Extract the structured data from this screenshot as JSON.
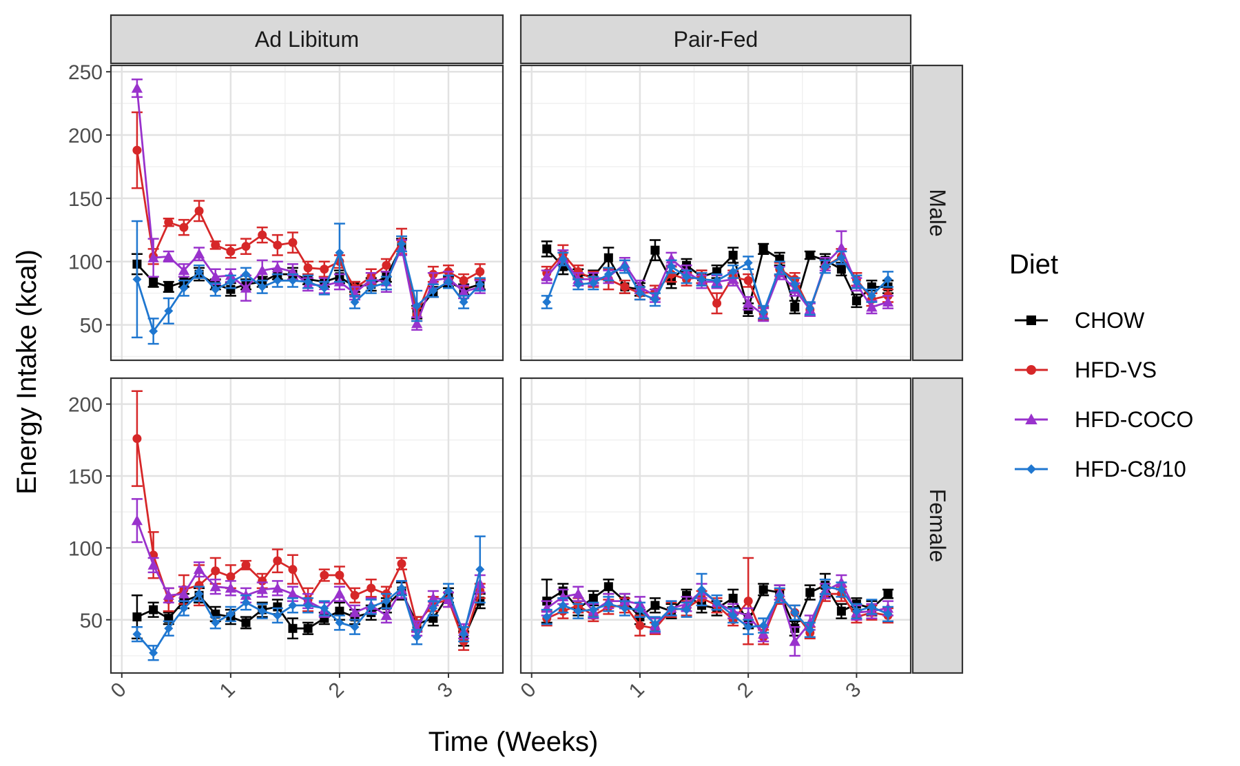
{
  "chart_data": {
    "type": "line",
    "xlabel": "Time (Weeks)",
    "ylabel": "Energy Intake (kcal)",
    "xlim": [
      -0.1,
      3.5
    ],
    "x_ticks": [
      "0",
      "1",
      "2",
      "3"
    ],
    "columns": [
      "Ad Libitum",
      "Pair-Fed"
    ],
    "rows": [
      "Male",
      "Female"
    ],
    "row_ylim": {
      "Male": [
        22,
        255
      ],
      "Female": [
        13,
        218
      ]
    },
    "row_yticks": {
      "Male": [
        50,
        100,
        150,
        200,
        250
      ],
      "Female": [
        50,
        100,
        150,
        200
      ]
    },
    "legend": {
      "title": "Diet",
      "position": "right",
      "items": [
        {
          "name": "CHOW",
          "color": "#000000",
          "shape": "square"
        },
        {
          "name": "HFD-VS",
          "color": "#d62728",
          "shape": "circle"
        },
        {
          "name": "HFD-COCO",
          "color": "#9932cc",
          "shape": "triangle"
        },
        {
          "name": "HFD-C8/10",
          "color": "#1f77d0",
          "shape": "diamond"
        }
      ]
    },
    "x": [
      0.14,
      0.29,
      0.43,
      0.57,
      0.71,
      0.86,
      1.0,
      1.14,
      1.29,
      1.43,
      1.57,
      1.71,
      1.86,
      2.0,
      2.14,
      2.29,
      2.43,
      2.57,
      2.71,
      2.86,
      3.0,
      3.14,
      3.29
    ],
    "panels": [
      {
        "column": "Ad Libitum",
        "row": "Male",
        "series": [
          {
            "name": "CHOW",
            "values": [
              98,
              84,
              80,
              84,
              90,
              82,
              78,
              82,
              84,
              90,
              90,
              86,
              84,
              88,
              80,
              82,
              88,
              112,
              60,
              76,
              84,
              78,
              82
            ],
            "errors": [
              8,
              4,
              4,
              4,
              5,
              4,
              5,
              4,
              4,
              4,
              5,
              4,
              4,
              5,
              4,
              5,
              4,
              6,
              5,
              4,
              4,
              4,
              4
            ]
          },
          {
            "name": "HFD-VS",
            "values": [
              188,
              104,
              131,
              127,
              140,
              113,
              108,
              112,
              121,
              113,
              115,
              95,
              94,
              100,
              79,
              88,
              97,
              116,
              58,
              90,
              92,
              85,
              92
            ],
            "errors": [
              30,
              6,
              3,
              6,
              8,
              3,
              5,
              6,
              6,
              8,
              8,
              5,
              6,
              5,
              5,
              6,
              5,
              10,
              5,
              6,
              5,
              5,
              6
            ]
          },
          {
            "name": "HFD-COCO",
            "values": [
              237,
              103,
              104,
              93,
              106,
              88,
              89,
              79,
              93,
              95,
              92,
              82,
              81,
              84,
              75,
              86,
              84,
              111,
              51,
              85,
              87,
              76,
              80
            ],
            "errors": [
              7,
              15,
              4,
              5,
              5,
              6,
              5,
              10,
              8,
              5,
              6,
              5,
              6,
              6,
              5,
              5,
              8,
              6,
              5,
              6,
              5,
              5,
              5
            ]
          },
          {
            "name": "HFD-C8/10",
            "values": [
              86,
              45,
              61,
              79,
              92,
              78,
              84,
              90,
              80,
              85,
              85,
              84,
              79,
              107,
              68,
              80,
              83,
              114,
              65,
              77,
              84,
              68,
              82
            ],
            "errors": [
              46,
              10,
              10,
              6,
              5,
              5,
              5,
              5,
              5,
              5,
              5,
              5,
              5,
              23,
              5,
              5,
              5,
              6,
              12,
              5,
              5,
              5,
              5
            ]
          }
        ]
      },
      {
        "column": "Pair-Fed",
        "row": "Male",
        "series": [
          {
            "name": "CHOW",
            "values": [
              110,
              96,
              90,
              88,
              103,
              80,
              78,
              109,
              85,
              97,
              88,
              92,
              105,
              62,
              110,
              102,
              64,
              105,
              101,
              94,
              69,
              80,
              80
            ],
            "errors": [
              6,
              6,
              4,
              5,
              8,
              5,
              5,
              8,
              6,
              5,
              5,
              5,
              6,
              5,
              4,
              5,
              5,
              3,
              5,
              5,
              5,
              5,
              5
            ]
          },
          {
            "name": "HFD-VS",
            "values": [
              91,
              106,
              92,
              86,
              86,
              80,
              75,
              76,
              90,
              86,
              88,
              67,
              88,
              85,
              59,
              94,
              86,
              62,
              96,
              104,
              86,
              70,
              73
            ],
            "errors": [
              5,
              7,
              5,
              6,
              8,
              5,
              5,
              5,
              6,
              5,
              5,
              8,
              5,
              5,
              5,
              5,
              5,
              5,
              5,
              6,
              5,
              5,
              5
            ]
          },
          {
            "name": "HFD-COCO",
            "values": [
              88,
              103,
              86,
              86,
              88,
              98,
              80,
              73,
              102,
              92,
              84,
              84,
              86,
              67,
              58,
              91,
              78,
              62,
              98,
              111,
              82,
              64,
              68
            ],
            "errors": [
              5,
              6,
              5,
              5,
              5,
              5,
              5,
              5,
              5,
              5,
              5,
              5,
              5,
              5,
              5,
              5,
              5,
              5,
              5,
              13,
              5,
              5,
              5
            ]
          },
          {
            "name": "HFD-C8/10",
            "values": [
              68,
              102,
              82,
              83,
              90,
              96,
              75,
              70,
              96,
              88,
              86,
              85,
              92,
              99,
              60,
              95,
              82,
              63,
              96,
              103,
              84,
              73,
              86
            ],
            "errors": [
              5,
              5,
              4,
              5,
              5,
              5,
              5,
              5,
              5,
              5,
              5,
              5,
              5,
              5,
              5,
              5,
              5,
              5,
              5,
              5,
              5,
              5,
              6
            ]
          }
        ]
      },
      {
        "column": "Ad Libitum",
        "row": "Female",
        "series": [
          {
            "name": "CHOW",
            "values": [
              52,
              57,
              51,
              63,
              67,
              54,
              52,
              48,
              57,
              59,
              44,
              44,
              51,
              56,
              52,
              55,
              60,
              70,
              47,
              51,
              67,
              37,
              63
            ],
            "errors": [
              15,
              5,
              4,
              5,
              5,
              5,
              5,
              4,
              5,
              5,
              7,
              4,
              4,
              6,
              5,
              5,
              5,
              6,
              5,
              5,
              5,
              5,
              5
            ]
          },
          {
            "name": "HFD-VS",
            "values": [
              176,
              95,
              64,
              71,
              74,
              84,
              80,
              88,
              77,
              91,
              85,
              64,
              81,
              81,
              67,
              72,
              68,
              89,
              47,
              61,
              64,
              35,
              70
            ],
            "errors": [
              33,
              16,
              8,
              10,
              14,
              9,
              8,
              3,
              5,
              8,
              10,
              8,
              4,
              6,
              5,
              6,
              5,
              4,
              5,
              5,
              5,
              6,
              5
            ]
          },
          {
            "name": "HFD-COCO",
            "values": [
              119,
              88,
              67,
              68,
              85,
              73,
              72,
              67,
              71,
              72,
              68,
              63,
              57,
              68,
              55,
              60,
              53,
              71,
              44,
              65,
              64,
              42,
              75
            ],
            "errors": [
              15,
              5,
              5,
              5,
              5,
              5,
              5,
              5,
              5,
              5,
              5,
              5,
              5,
              5,
              5,
              5,
              5,
              6,
              5,
              5,
              5,
              5,
              6
            ]
          },
          {
            "name": "HFD-C8/10",
            "values": [
              40,
              27,
              44,
              58,
              68,
              48,
              54,
              62,
              56,
              53,
              60,
              60,
              58,
              48,
              45,
              59,
              63,
              72,
              38,
              58,
              70,
              40,
              85
            ],
            "errors": [
              5,
              5,
              5,
              5,
              5,
              4,
              5,
              5,
              5,
              5,
              5,
              5,
              5,
              5,
              5,
              5,
              5,
              5,
              5,
              5,
              5,
              5,
              23
            ]
          }
        ]
      },
      {
        "column": "Pair-Fed",
        "row": "Female",
        "series": [
          {
            "name": "CHOW",
            "values": [
              63,
              70,
              58,
              65,
              73,
              63,
              52,
              60,
              56,
              67,
              60,
              58,
              65,
              49,
              71,
              69,
              44,
              69,
              74,
              56,
              61,
              58,
              68
            ],
            "errors": [
              15,
              5,
              5,
              5,
              5,
              5,
              5,
              5,
              5,
              4,
              5,
              5,
              6,
              5,
              4,
              5,
              5,
              5,
              8,
              5,
              4,
              5,
              3
            ]
          },
          {
            "name": "HFD-VS",
            "values": [
              51,
              56,
              60,
              53,
              59,
              60,
              46,
              44,
              57,
              58,
              65,
              60,
              50,
              63,
              38,
              66,
              55,
              41,
              68,
              68,
              52,
              55,
              53
            ],
            "errors": [
              5,
              5,
              5,
              4,
              5,
              5,
              7,
              4,
              5,
              5,
              5,
              5,
              4,
              30,
              5,
              5,
              5,
              4,
              5,
              5,
              4,
              5,
              5
            ]
          },
          {
            "name": "HFD-COCO",
            "values": [
              58,
              66,
              68,
              56,
              63,
              63,
              61,
              46,
              58,
              61,
              70,
              62,
              56,
              53,
              40,
              69,
              35,
              48,
              70,
              76,
              55,
              56,
              58
            ],
            "errors": [
              5,
              5,
              5,
              5,
              5,
              5,
              5,
              5,
              5,
              5,
              5,
              5,
              5,
              5,
              5,
              5,
              10,
              5,
              5,
              5,
              5,
              5,
              5
            ]
          },
          {
            "name": "HFD-C8/10",
            "values": [
              52,
              60,
              56,
              57,
              61,
              58,
              57,
              47,
              58,
              57,
              71,
              62,
              53,
              45,
              46,
              67,
              55,
              43,
              73,
              71,
              56,
              59,
              54
            ],
            "errors": [
              5,
              5,
              5,
              5,
              5,
              5,
              5,
              5,
              5,
              5,
              11,
              5,
              5,
              5,
              5,
              5,
              5,
              5,
              5,
              5,
              5,
              5,
              5
            ]
          }
        ]
      }
    ]
  }
}
